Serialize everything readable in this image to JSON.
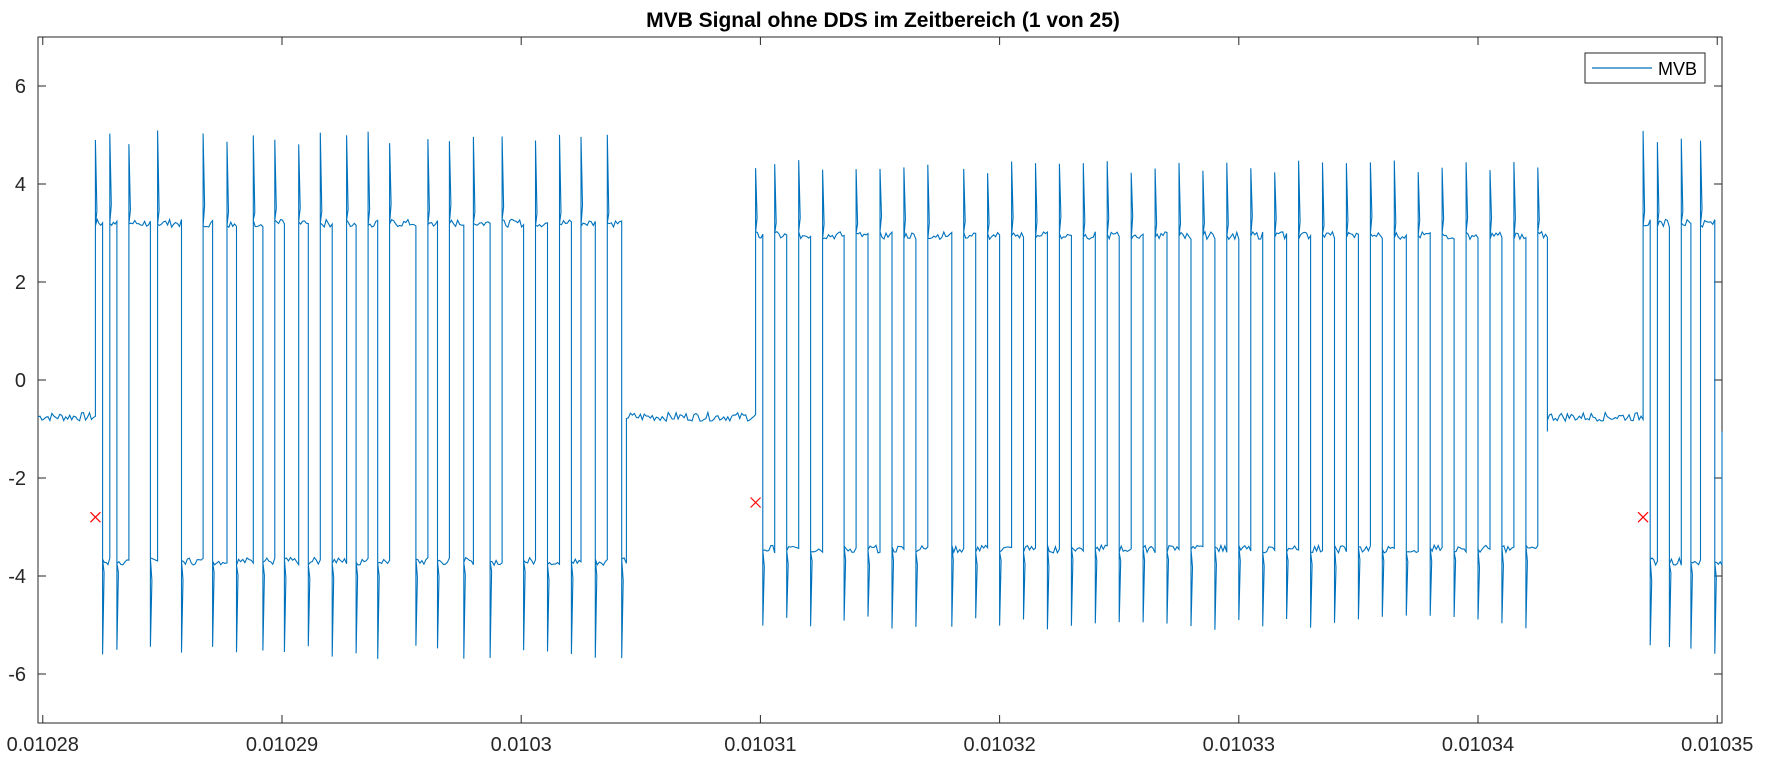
{
  "chart_data": {
    "type": "line",
    "title": "MVB Signal ohne DDS im Zeitbereich (1 von 25)",
    "xlabel": "",
    "ylabel": "",
    "xlim": [
      0.0102798,
      0.0103502
    ],
    "ylim": [
      -7,
      7
    ],
    "x_ticks": [
      0.01028,
      0.01029,
      0.0103,
      0.01031,
      0.01032,
      0.01033,
      0.01034,
      0.01035
    ],
    "x_tick_labels": [
      "0.01028",
      "0.01029",
      "0.0103",
      "0.01031",
      "0.01032",
      "0.01033",
      "0.01034",
      "0.01035"
    ],
    "y_ticks": [
      6,
      4,
      2,
      0,
      -2,
      -4,
      -6
    ],
    "y_tick_labels": [
      "6",
      "4",
      "2",
      "0",
      "-2",
      "-4",
      "-6"
    ],
    "grid": false,
    "legend": {
      "position": "top-right",
      "entries": [
        "MVB"
      ]
    },
    "colors": {
      "signal": "#0072BD",
      "marker": "#FF0000",
      "axis": "#262626"
    },
    "series": [
      {
        "name": "MVB",
        "idle_level": -0.75,
        "frames": [
          {
            "start": 0.0102822,
            "end": 0.0103044,
            "high": 3.2,
            "low": -3.7,
            "overshoot_high": 5.1,
            "overshoot_low": -5.7,
            "edges": [
              0.0102822,
              0.0102825,
              0.0102828,
              0.0102831,
              0.0102836,
              0.0102845,
              0.0102848,
              0.0102858,
              0.0102867,
              0.0102871,
              0.0102877,
              0.0102881,
              0.0102888,
              0.0102892,
              0.0102897,
              0.0102901,
              0.0102907,
              0.0102911,
              0.0102916,
              0.0102921,
              0.0102927,
              0.0102931,
              0.0102936,
              0.010294,
              0.0102945,
              0.0102956,
              0.0102961,
              0.0102965,
              0.010297,
              0.0102976,
              0.010298,
              0.0102987,
              0.0102992,
              0.0103001,
              0.0103006,
              0.0103011,
              0.0103016,
              0.0103021,
              0.0103025,
              0.0103031,
              0.0103036,
              0.0103042
            ]
          },
          {
            "start": 0.0103098,
            "end": 0.0103429,
            "high": 2.95,
            "low": -3.45,
            "overshoot_high": 4.5,
            "overshoot_low": -5.1,
            "edges": [
              0.0103098,
              0.0103101,
              0.0103106,
              0.0103111,
              0.0103116,
              0.0103121,
              0.0103126,
              0.0103135,
              0.010314,
              0.0103145,
              0.010315,
              0.0103155,
              0.010316,
              0.0103165,
              0.010317,
              0.010318,
              0.0103185,
              0.010319,
              0.0103195,
              0.01032,
              0.0103205,
              0.010321,
              0.0103215,
              0.010322,
              0.0103225,
              0.010323,
              0.0103235,
              0.010324,
              0.0103245,
              0.010325,
              0.0103255,
              0.010326,
              0.0103265,
              0.010327,
              0.0103275,
              0.010328,
              0.0103285,
              0.010329,
              0.0103295,
              0.01033,
              0.0103305,
              0.010331,
              0.0103315,
              0.010332,
              0.0103325,
              0.010333,
              0.0103335,
              0.010334,
              0.0103345,
              0.010335,
              0.0103355,
              0.010336,
              0.0103365,
              0.010337,
              0.0103375,
              0.010338,
              0.0103385,
              0.010339,
              0.0103395,
              0.01034,
              0.0103405,
              0.010341,
              0.0103415,
              0.010342,
              0.0103425
            ]
          },
          {
            "start": 0.0103469,
            "end": 0.0103502,
            "high": 3.2,
            "low": -3.7,
            "overshoot_high": 5.1,
            "overshoot_low": -5.7,
            "edges": [
              0.0103469,
              0.0103472,
              0.0103475,
              0.010348,
              0.0103485,
              0.0103489,
              0.0103493,
              0.0103499
            ]
          }
        ]
      },
      {
        "name": "",
        "type": "scatter",
        "marker": "x",
        "x": [
          0.0102822,
          0.0103098,
          0.0103469
        ],
        "y": [
          -2.8,
          -2.5,
          -2.8
        ]
      }
    ]
  }
}
